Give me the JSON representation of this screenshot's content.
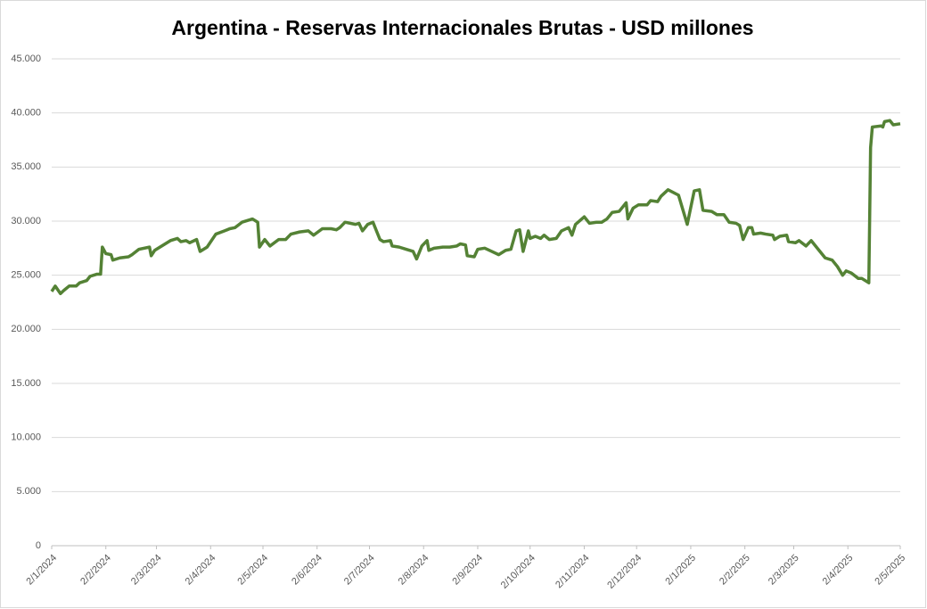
{
  "chart_data": {
    "type": "line",
    "title": "Argentina - Reservas Internacionales Brutas - USD millones",
    "x": [
      "2024-01-02",
      "2024-01-04",
      "2024-01-07",
      "2024-01-09",
      "2024-01-12",
      "2024-01-16",
      "2024-01-18",
      "2024-01-22",
      "2024-01-24",
      "2024-01-28",
      "2024-01-30",
      "2024-01-31",
      "2024-02-02",
      "2024-02-05",
      "2024-02-06",
      "2024-02-10",
      "2024-02-15",
      "2024-02-17",
      "2024-02-21",
      "2024-02-27",
      "2024-02-28",
      "2024-03-01",
      "2024-03-07",
      "2024-03-10",
      "2024-03-14",
      "2024-03-16",
      "2024-03-19",
      "2024-03-21",
      "2024-03-25",
      "2024-03-27",
      "2024-03-31",
      "2024-04-05",
      "2024-04-10",
      "2024-04-13",
      "2024-04-16",
      "2024-04-20",
      "2024-04-26",
      "2024-04-29",
      "2024-04-30",
      "2024-05-03",
      "2024-05-06",
      "2024-05-11",
      "2024-05-15",
      "2024-05-18",
      "2024-05-23",
      "2024-05-28",
      "2024-05-31",
      "2024-06-05",
      "2024-06-10",
      "2024-06-13",
      "2024-06-15",
      "2024-06-18",
      "2024-06-24",
      "2024-06-26",
      "2024-06-28",
      "2024-07-01",
      "2024-07-04",
      "2024-07-08",
      "2024-07-10",
      "2024-07-14",
      "2024-07-15",
      "2024-07-19",
      "2024-07-23",
      "2024-07-27",
      "2024-07-29",
      "2024-08-01",
      "2024-08-04",
      "2024-08-05",
      "2024-08-08",
      "2024-08-13",
      "2024-08-17",
      "2024-08-21",
      "2024-08-23",
      "2024-08-26",
      "2024-08-27",
      "2024-08-31",
      "2024-09-02",
      "2024-09-06",
      "2024-09-10",
      "2024-09-14",
      "2024-09-18",
      "2024-09-21",
      "2024-09-24",
      "2024-09-26",
      "2024-09-28",
      "2024-10-01",
      "2024-10-02",
      "2024-10-05",
      "2024-10-08",
      "2024-10-10",
      "2024-10-13",
      "2024-10-17",
      "2024-10-20",
      "2024-10-24",
      "2024-10-26",
      "2024-10-28",
      "2024-11-02",
      "2024-11-05",
      "2024-11-09",
      "2024-11-12",
      "2024-11-15",
      "2024-11-18",
      "2024-11-22",
      "2024-11-26",
      "2024-11-27",
      "2024-11-30",
      "2024-12-03",
      "2024-12-08",
      "2024-12-10",
      "2024-12-14",
      "2024-12-16",
      "2024-12-20",
      "2024-12-26",
      "2024-12-31",
      "2025-01-04",
      "2025-01-07",
      "2025-01-09",
      "2025-01-14",
      "2025-01-17",
      "2025-01-21",
      "2025-01-24",
      "2025-01-28",
      "2025-01-30",
      "2025-02-01",
      "2025-02-04",
      "2025-02-06",
      "2025-02-07",
      "2025-02-11",
      "2025-02-14",
      "2025-02-18",
      "2025-02-19",
      "2025-02-22",
      "2025-02-26",
      "2025-02-27",
      "2025-03-03",
      "2025-03-05",
      "2025-03-09",
      "2025-03-12",
      "2025-03-17",
      "2025-03-20",
      "2025-03-24",
      "2025-03-27",
      "2025-03-30",
      "2025-04-01",
      "2025-04-04",
      "2025-04-08",
      "2025-04-10",
      "2025-04-14",
      "2025-04-15",
      "2025-04-16",
      "2025-04-21",
      "2025-04-22",
      "2025-04-23",
      "2025-04-26",
      "2025-04-28",
      "2025-05-02"
    ],
    "series": [
      {
        "name": "Reservas",
        "color": "#548235",
        "values": [
          23500,
          24000,
          23300,
          23600,
          24000,
          24000,
          24300,
          24500,
          24900,
          25100,
          25100,
          27600,
          27000,
          26900,
          26400,
          26600,
          26700,
          26900,
          27400,
          27600,
          26800,
          27300,
          27900,
          28200,
          28400,
          28100,
          28200,
          28000,
          28300,
          27200,
          27600,
          28800,
          29100,
          29300,
          29400,
          29900,
          30200,
          29900,
          27600,
          28300,
          27700,
          28300,
          28300,
          28800,
          29000,
          29100,
          28700,
          29300,
          29300,
          29200,
          29400,
          29900,
          29700,
          29800,
          29100,
          29700,
          29900,
          28300,
          28100,
          28200,
          27700,
          27600,
          27400,
          27200,
          26500,
          27700,
          28200,
          27300,
          27500,
          27600,
          27600,
          27700,
          27900,
          27800,
          26800,
          26700,
          27400,
          27500,
          27200,
          26900,
          27300,
          27400,
          29100,
          29200,
          27200,
          29100,
          28400,
          28600,
          28400,
          28700,
          28300,
          28400,
          29100,
          29400,
          28700,
          29700,
          30400,
          29800,
          29900,
          29900,
          30200,
          30800,
          30900,
          31700,
          30200,
          31200,
          31500,
          31500,
          31900,
          31800,
          32300,
          32900,
          32400,
          29700,
          32800,
          32900,
          31000,
          30900,
          30600,
          30600,
          29900,
          29800,
          29600,
          28300,
          29400,
          29400,
          28800,
          28900,
          28800,
          28700,
          28300,
          28600,
          28700,
          28100,
          28000,
          28200,
          27700,
          28200,
          27200,
          26600,
          26400,
          25800,
          25000,
          25400,
          25200,
          24700,
          24700,
          24300,
          36800,
          38700,
          38800,
          38700,
          39200,
          39300,
          38900,
          39000
        ]
      }
    ],
    "xlim": [
      "2024-01-02",
      "2025-05-02"
    ],
    "xticks": [
      {
        "value": "2024-01-02",
        "label": "2/1/2024"
      },
      {
        "value": "2024-02-02",
        "label": "2/2/2024"
      },
      {
        "value": "2024-03-02",
        "label": "2/3/2024"
      },
      {
        "value": "2024-04-02",
        "label": "2/4/2024"
      },
      {
        "value": "2024-05-02",
        "label": "2/5/2024"
      },
      {
        "value": "2024-06-02",
        "label": "2/6/2024"
      },
      {
        "value": "2024-07-02",
        "label": "2/7/2024"
      },
      {
        "value": "2024-08-02",
        "label": "2/8/2024"
      },
      {
        "value": "2024-09-02",
        "label": "2/9/2024"
      },
      {
        "value": "2024-10-02",
        "label": "2/10/2024"
      },
      {
        "value": "2024-11-02",
        "label": "2/11/2024"
      },
      {
        "value": "2024-12-02",
        "label": "2/12/2024"
      },
      {
        "value": "2025-01-02",
        "label": "2/1/2025"
      },
      {
        "value": "2025-02-02",
        "label": "2/2/2025"
      },
      {
        "value": "2025-03-02",
        "label": "2/3/2025"
      },
      {
        "value": "2025-04-02",
        "label": "2/4/2025"
      },
      {
        "value": "2025-05-02",
        "label": "2/5/2025"
      }
    ],
    "ylim": [
      0,
      45000
    ],
    "yticks": [
      0,
      {
        "value": 5000,
        "label": "5.000"
      },
      {
        "value": 10000,
        "label": "10.000"
      },
      {
        "value": 15000,
        "label": "15.000"
      },
      {
        "value": 20000,
        "label": "20.000"
      },
      {
        "value": 25000,
        "label": "25.000"
      },
      {
        "value": 30000,
        "label": "30.000"
      },
      {
        "value": 35000,
        "label": "35.000"
      },
      {
        "value": 40000,
        "label": "40.000"
      },
      {
        "value": 45000,
        "label": "45.000"
      }
    ],
    "grid": true
  }
}
